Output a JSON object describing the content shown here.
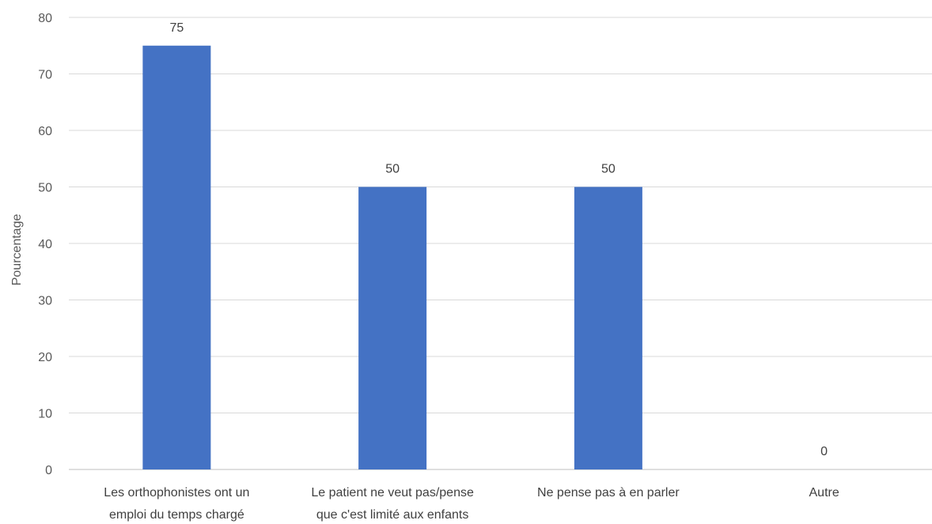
{
  "chart_data": {
    "type": "bar",
    "title": "",
    "xlabel": "",
    "ylabel": "Pourcentage",
    "categories": [
      [
        "Les orthophonistes ont un",
        "emploi du temps chargé"
      ],
      [
        "Le patient ne veut pas/pense",
        "que c'est limité aux enfants"
      ],
      [
        "Ne pense pas à en parler"
      ],
      [
        "Autre"
      ]
    ],
    "values": [
      75,
      50,
      50,
      0
    ],
    "ylim": [
      0,
      80
    ],
    "yticks": [
      0,
      10,
      20,
      30,
      40,
      50,
      60,
      70,
      80
    ],
    "grid": true,
    "legend": "none",
    "bar_color": "#4472C4",
    "grid_color": "#D9D9D9"
  }
}
